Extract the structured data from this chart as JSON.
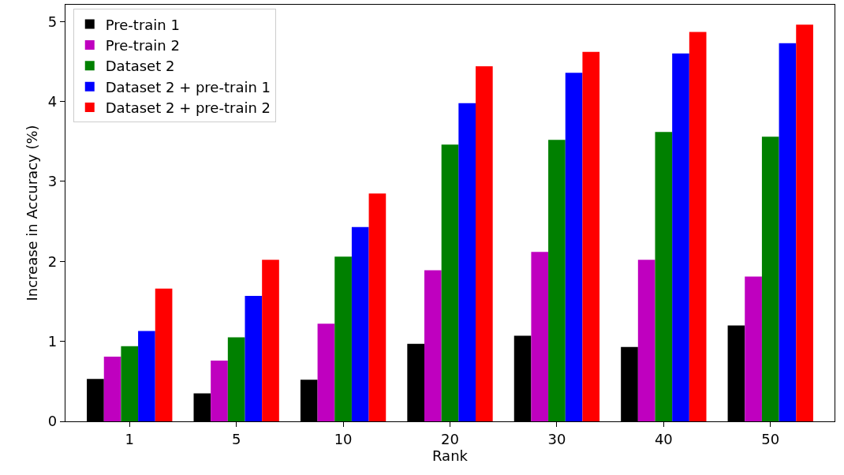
{
  "chart_data": {
    "type": "bar",
    "xlabel": "Rank",
    "ylabel": "Increase in Accuracy (%)",
    "categories": [
      "1",
      "5",
      "10",
      "20",
      "30",
      "40",
      "50"
    ],
    "series": [
      {
        "name": "Pre-train 1",
        "color": "#000000",
        "values": [
          0.53,
          0.35,
          0.52,
          0.97,
          1.07,
          0.93,
          1.2
        ]
      },
      {
        "name": "Pre-train 2",
        "color": "#bf00bf",
        "values": [
          0.81,
          0.76,
          1.22,
          1.89,
          2.12,
          2.02,
          1.81
        ]
      },
      {
        "name": "Dataset 2",
        "color": "#008000",
        "values": [
          0.94,
          1.05,
          2.06,
          3.46,
          3.52,
          3.62,
          3.56
        ]
      },
      {
        "name": "Dataset 2 + pre-train 1",
        "color": "#0000ff",
        "values": [
          1.13,
          1.57,
          2.43,
          3.98,
          4.36,
          4.6,
          4.73
        ]
      },
      {
        "name": "Dataset 2 + pre-train 2",
        "color": "#ff0000",
        "values": [
          1.66,
          2.02,
          2.85,
          4.44,
          4.62,
          4.87,
          4.96
        ]
      }
    ],
    "ylim": [
      0,
      5.21
    ],
    "yticks": [
      0,
      1,
      2,
      3,
      4,
      5
    ],
    "grid": false,
    "legend": "top left"
  }
}
